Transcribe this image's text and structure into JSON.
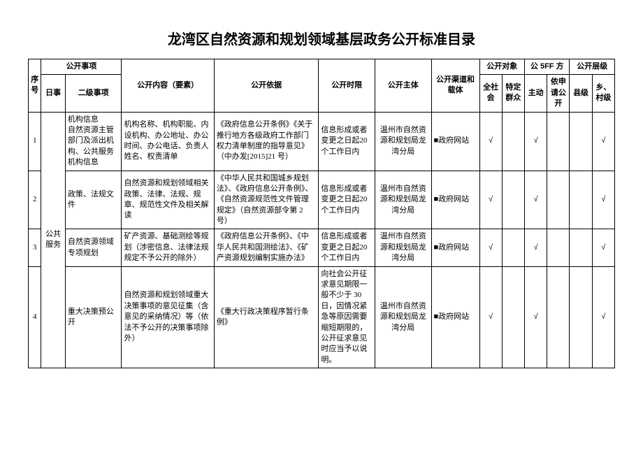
{
  "title": "龙湾区自然资源和规划领域基层政务公开标准目录",
  "headers": {
    "seq": "序号",
    "matter_group": "公开事项",
    "cat": "日事",
    "sub": "二级事项",
    "content": "公开内容（要素）",
    "basis": "公开依据",
    "time": "公开时限",
    "subject": "公开主体",
    "channel": "公开渠道和载体",
    "target_group": "公开对象",
    "target_all": "全社会",
    "target_spec": "特定群众",
    "method_group": "公开方式",
    "method_group_codes": "公 5FF 方",
    "method_active": "主动",
    "method_apply": "依申请公开",
    "level_group": "公开层级",
    "level_county": "县级",
    "level_village": "乡、村级"
  },
  "category": "公共服务",
  "rows": [
    {
      "seq": "1",
      "sub": "机构信息",
      "sub_detail": "自然资源主管部门及派出机构、公共服务机构信息",
      "content": "机构名称、机构职能、内设机构、办公地址、办公时间、办公电话、负责人姓名、权责清单",
      "basis": "《政府信息公开条例》《关于推行地方各级政府工作部门权力清单制度的指导意见》（中办发[2015]21 号）",
      "time": "信息形成或者变更之日起20个工作日内",
      "subject": "温州市自然资源和规划局龙湾分局",
      "channel": "■政府网站",
      "all": "√",
      "spec": "",
      "active": "√",
      "apply": "",
      "county": "",
      "village": "√"
    },
    {
      "seq": "2",
      "sub": "政策、法规文件",
      "sub_detail": "",
      "content": "自然资源和规划领域相关政策、法律、法规、规章、规范性文件及相关解读",
      "basis": "《中华人民共和国城乡规划法》、《政府信息公开条例》、《自然资源规范性文件管理规定》（自然资源部令第 2 号）",
      "time": "信息形成或者变更之日起20个工作日内",
      "subject": "温州市自然资源和规划局龙湾分局",
      "channel": "■政府网站",
      "all": "√",
      "spec": "",
      "active": "√",
      "apply": "",
      "county": "",
      "village": "√"
    },
    {
      "seq": "3",
      "sub": "自然资源领域专项规划",
      "sub_detail": "",
      "content": "矿产资源、基础测绘等规划（涉密信息、法律法规规定不予公开的除外）",
      "basis": "《政府信息公开条例》、《中华人民共和国测绘法》、《矿产资源规划编制实施办法》",
      "time": "信息形成或者变更之日起20个工作日内",
      "subject": "温州市自然资源和规划局龙湾分局",
      "channel": "■政府网站",
      "all": "√",
      "spec": "",
      "active": "√",
      "apply": "",
      "county": "",
      "village": "√"
    },
    {
      "seq": "4",
      "sub": "重大决策预公开",
      "sub_detail": "",
      "content": "自然资源和规划领域重大决策事项的意见征集（含意见的采纳情况）等（依法不予公开的决策事项除外）",
      "basis": "《重大行政决策程序暂行条例》",
      "time": "向社会公开征求意见期限一般不少于 30 日，因情况紧急等原因需要缩短期限的，公开征求意见时应当予以说明。",
      "subject": "温州市自然资源和规划局龙湾分局",
      "channel": "■政府网站",
      "all": "√",
      "spec": "",
      "active": "√",
      "apply": "",
      "county": "",
      "village": "√"
    }
  ]
}
